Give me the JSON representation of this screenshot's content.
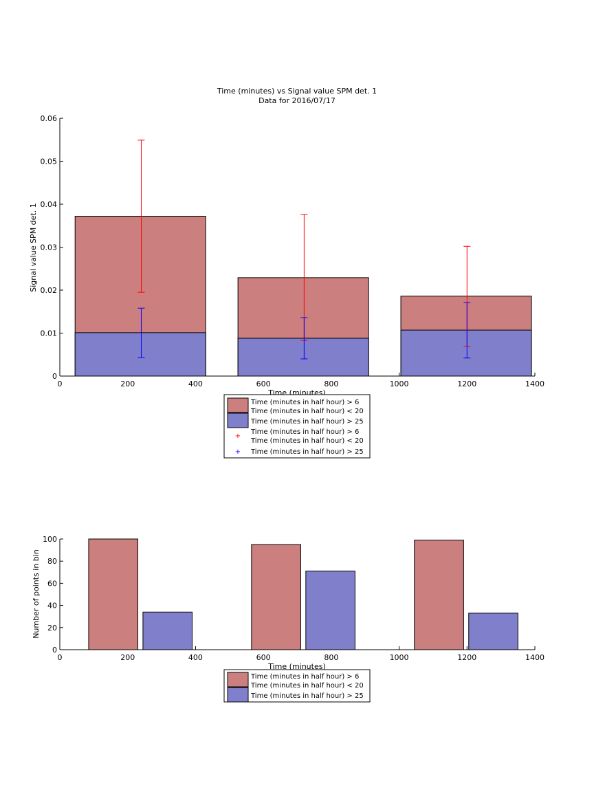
{
  "colors": {
    "red_bar": "#cc7f7f",
    "blue_bar": "#7f7fcc",
    "red_err": "#ff0000",
    "blue_err": "#0000ff",
    "axis": "#000000"
  },
  "chart_data": [
    {
      "type": "bar",
      "title": "Time (minutes) vs Signal value SPM det. 1",
      "subtitle": "Data for 2016/07/17",
      "xlabel": "Time (minutes)",
      "ylabel": "Signal value SPM det. 1",
      "xlim": [
        0,
        1400
      ],
      "ylim": [
        0,
        0.06
      ],
      "xticks": [
        "0",
        "200",
        "400",
        "600",
        "800",
        "1000",
        "1200",
        "1400"
      ],
      "yticks": [
        "0",
        "0.01",
        "0.02",
        "0.03",
        "0.04",
        "0.05",
        "0.06"
      ],
      "grid": false,
      "legend_position": "below",
      "bins": [
        {
          "x_start": 45,
          "x_end": 430,
          "center": 240
        },
        {
          "x_start": 525,
          "x_end": 910,
          "center": 720
        },
        {
          "x_start": 1005,
          "x_end": 1390,
          "center": 1200
        }
      ],
      "series": [
        {
          "name": "Time (minutes in half hour) > 6\nTime (minutes in half hour) < 20",
          "kind": "bar",
          "color": "#cc7f7f",
          "values": [
            0.0372,
            0.0229,
            0.0186
          ]
        },
        {
          "name": "Time (minutes in half hour) > 25",
          "kind": "bar",
          "color": "#7f7fcc",
          "values": [
            0.0101,
            0.0088,
            0.0107
          ]
        },
        {
          "name": "Time (minutes in half hour) > 6\nTime (minutes in half hour) < 20",
          "kind": "errorbar",
          "color": "#ff0000",
          "x": [
            240,
            720,
            1200
          ],
          "low": [
            0.0195,
            0.0083,
            0.0069
          ],
          "high": [
            0.0549,
            0.0376,
            0.0302
          ]
        },
        {
          "name": "Time (minutes in half hour) > 25",
          "kind": "errorbar",
          "color": "#0000ff",
          "x": [
            240,
            720,
            1200
          ],
          "low": [
            0.0043,
            0.004,
            0.0042
          ],
          "high": [
            0.0158,
            0.0136,
            0.0171
          ]
        }
      ],
      "legend": [
        "Time (minutes in half hour) > 6",
        "Time (minutes in half hour) < 20",
        "Time (minutes in half hour) > 25",
        "Time (minutes in half hour) > 6",
        "Time (minutes in half hour) < 20",
        "Time (minutes in half hour) > 25"
      ]
    },
    {
      "type": "bar",
      "xlabel": "Time (minutes)",
      "ylabel": "Number of points in bin",
      "xlim": [
        0,
        1400
      ],
      "ylim": [
        0,
        100
      ],
      "xticks": [
        "0",
        "200",
        "400",
        "600",
        "800",
        "1000",
        "1200",
        "1400"
      ],
      "yticks": [
        "0",
        "20",
        "40",
        "60",
        "80",
        "100"
      ],
      "grid": false,
      "legend_position": "below",
      "series": [
        {
          "name": "Time (minutes in half hour) > 6\nTime (minutes in half hour) < 20",
          "color": "#cc7f7f",
          "bars": [
            {
              "x_start": 85,
              "x_end": 230,
              "value": 100
            },
            {
              "x_start": 565,
              "x_end": 710,
              "value": 95
            },
            {
              "x_start": 1045,
              "x_end": 1190,
              "value": 99
            }
          ]
        },
        {
          "name": "Time (minutes in half hour) > 25",
          "color": "#7f7fcc",
          "bars": [
            {
              "x_start": 245,
              "x_end": 390,
              "value": 34
            },
            {
              "x_start": 725,
              "x_end": 870,
              "value": 71
            },
            {
              "x_start": 1205,
              "x_end": 1350,
              "value": 33
            }
          ]
        }
      ],
      "legend": [
        "Time (minutes in half hour) > 6",
        "Time (minutes in half hour) < 20",
        "Time (minutes in half hour) > 25"
      ]
    }
  ]
}
